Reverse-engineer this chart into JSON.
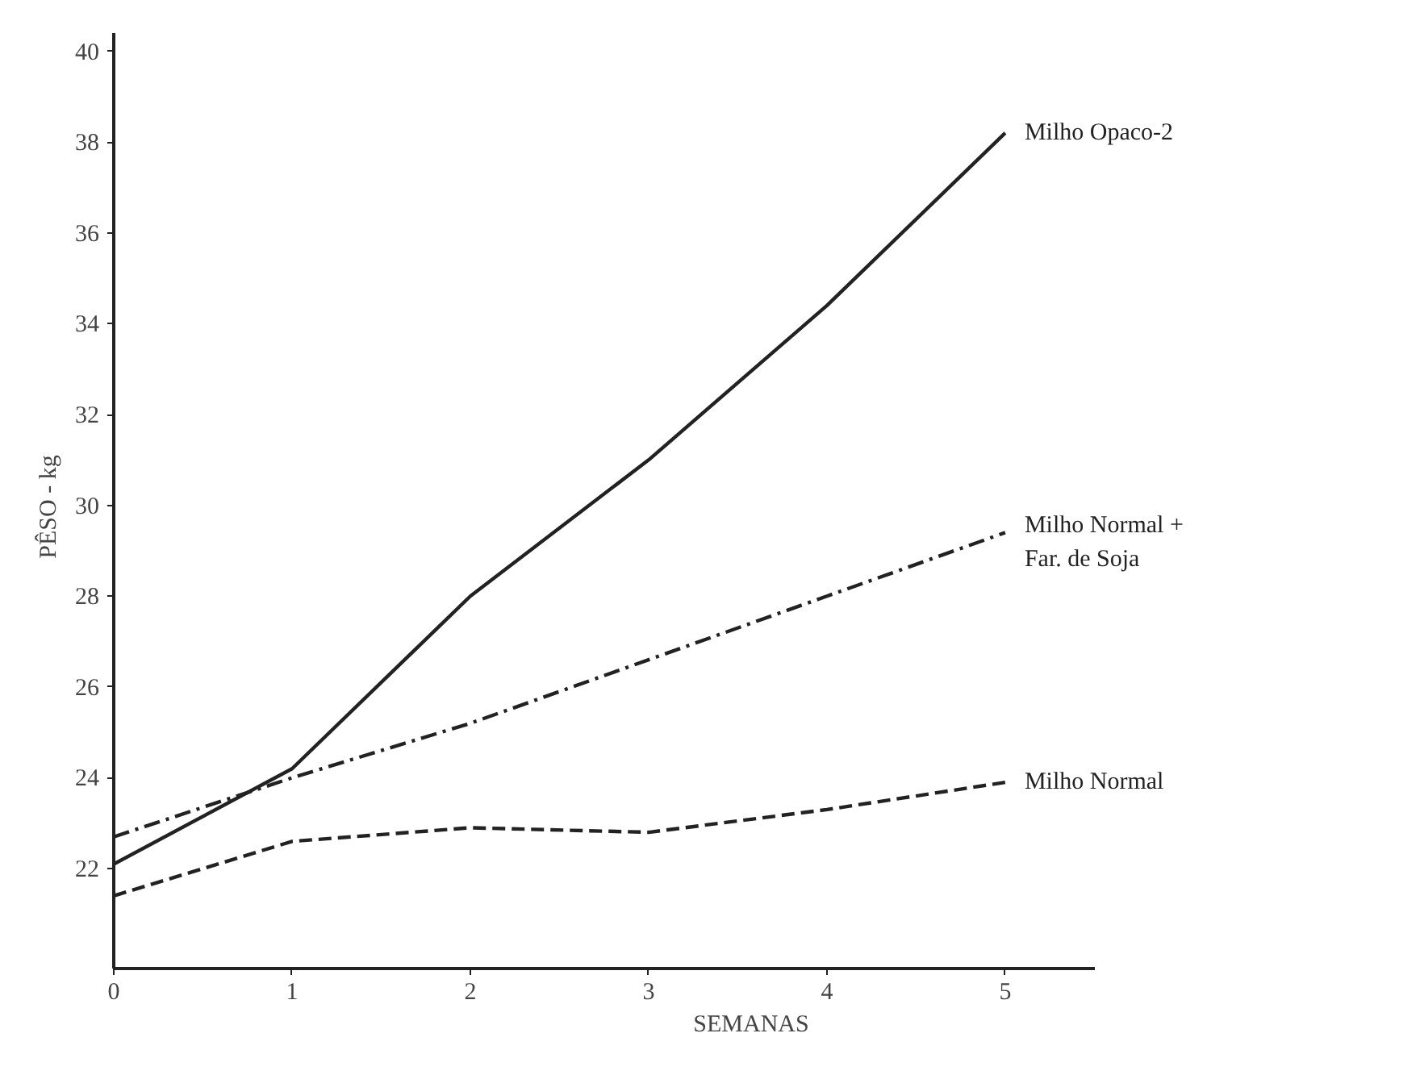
{
  "chart_data": {
    "type": "line",
    "xlabel": "SEMANAS",
    "ylabel": "PÊSO  -  kg",
    "x": [
      0,
      1,
      2,
      3,
      4,
      5
    ],
    "xlim": [
      0,
      5.5
    ],
    "xticks": [
      0,
      1,
      2,
      3,
      4,
      5
    ],
    "ylim": [
      19.8,
      40.4
    ],
    "yticks": [
      22,
      24,
      26,
      28,
      30,
      32,
      34,
      36,
      38,
      40
    ],
    "grid": false,
    "series": [
      {
        "name": "Milho Opaco-2",
        "color": "#222222",
        "line_style": "solid",
        "values": [
          22.1,
          24.2,
          28.0,
          31.0,
          34.4,
          38.2
        ]
      },
      {
        "name": "Milho Normal +\nFar. de Soja",
        "color": "#222222",
        "line_style": "dashdot",
        "values": [
          22.7,
          24.0,
          25.2,
          26.6,
          28.0,
          29.4
        ]
      },
      {
        "name": "Milho Normal",
        "color": "#222222",
        "line_style": "dashed",
        "values": [
          21.4,
          22.6,
          22.9,
          22.8,
          23.3,
          23.9
        ]
      }
    ]
  }
}
